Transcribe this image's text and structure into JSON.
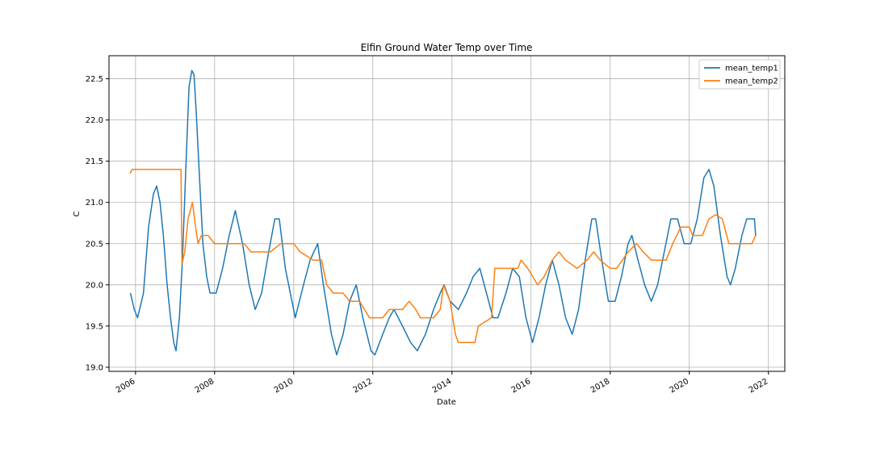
{
  "chart_data": {
    "type": "line",
    "title": "Elfin Ground Water Temp over Time",
    "xlabel": "Date",
    "ylabel": "C",
    "xlim": [
      "2005-05-01",
      "2022-06-01"
    ],
    "ylim": [
      18.95,
      22.78
    ],
    "x_ticks": [
      "2006",
      "2008",
      "2010",
      "2012",
      "2014",
      "2016",
      "2018",
      "2020",
      "2022"
    ],
    "y_ticks": [
      19.0,
      19.5,
      20.0,
      20.5,
      21.0,
      21.5,
      22.0,
      22.5
    ],
    "grid": true,
    "legend_position": "top-right",
    "series": [
      {
        "name": "mean_temp1",
        "color": "#1f77b4",
        "points": [
          [
            "2005-11-15",
            19.9
          ],
          [
            "2005-12-20",
            19.7
          ],
          [
            "2006-01-20",
            19.6
          ],
          [
            "2006-03-15",
            19.9
          ],
          [
            "2006-05-01",
            20.7
          ],
          [
            "2006-06-15",
            21.1
          ],
          [
            "2006-07-15",
            21.2
          ],
          [
            "2006-08-15",
            21.0
          ],
          [
            "2006-09-15",
            20.6
          ],
          [
            "2006-10-20",
            20.0
          ],
          [
            "2006-11-20",
            19.6
          ],
          [
            "2006-12-20",
            19.3
          ],
          [
            "2007-01-10",
            19.2
          ],
          [
            "2007-02-10",
            19.6
          ],
          [
            "2007-03-10",
            20.3
          ],
          [
            "2007-04-10",
            21.4
          ],
          [
            "2007-05-10",
            22.4
          ],
          [
            "2007-06-05",
            22.6
          ],
          [
            "2007-06-25",
            22.55
          ],
          [
            "2007-07-15",
            22.1
          ],
          [
            "2007-08-15",
            21.3
          ],
          [
            "2007-09-15",
            20.5
          ],
          [
            "2007-10-20",
            20.1
          ],
          [
            "2007-11-20",
            19.9
          ],
          [
            "2008-01-15",
            19.9
          ],
          [
            "2008-03-15",
            20.2
          ],
          [
            "2008-05-15",
            20.6
          ],
          [
            "2008-07-10",
            20.9
          ],
          [
            "2008-09-15",
            20.5
          ],
          [
            "2008-11-15",
            20.0
          ],
          [
            "2009-01-10",
            19.7
          ],
          [
            "2009-03-10",
            19.9
          ],
          [
            "2009-05-15",
            20.4
          ],
          [
            "2009-07-10",
            20.8
          ],
          [
            "2009-08-20",
            20.8
          ],
          [
            "2009-10-15",
            20.2
          ],
          [
            "2009-12-15",
            19.8
          ],
          [
            "2010-01-15",
            19.6
          ],
          [
            "2010-04-01",
            20.0
          ],
          [
            "2010-06-01",
            20.3
          ],
          [
            "2010-08-10",
            20.5
          ],
          [
            "2010-10-01",
            20.0
          ],
          [
            "2010-12-15",
            19.4
          ],
          [
            "2011-02-01",
            19.15
          ],
          [
            "2011-04-01",
            19.4
          ],
          [
            "2011-06-01",
            19.8
          ],
          [
            "2011-08-01",
            20.0
          ],
          [
            "2011-10-01",
            19.6
          ],
          [
            "2011-12-15",
            19.2
          ],
          [
            "2012-01-20",
            19.15
          ],
          [
            "2012-04-01",
            19.4
          ],
          [
            "2012-06-01",
            19.6
          ],
          [
            "2012-07-15",
            19.7
          ],
          [
            "2012-10-01",
            19.5
          ],
          [
            "2012-12-15",
            19.3
          ],
          [
            "2013-02-15",
            19.2
          ],
          [
            "2013-05-01",
            19.4
          ],
          [
            "2013-07-15",
            19.7
          ],
          [
            "2013-09-15",
            19.9
          ],
          [
            "2013-10-20",
            20.0
          ],
          [
            "2013-12-15",
            19.8
          ],
          [
            "2014-03-01",
            19.7
          ],
          [
            "2014-05-15",
            19.9
          ],
          [
            "2014-07-15",
            20.1
          ],
          [
            "2014-09-15",
            20.2
          ],
          [
            "2014-11-15",
            19.9
          ],
          [
            "2015-01-15",
            19.6
          ],
          [
            "2015-03-01",
            19.6
          ],
          [
            "2015-05-15",
            19.9
          ],
          [
            "2015-07-15",
            20.2
          ],
          [
            "2015-09-15",
            20.1
          ],
          [
            "2015-11-15",
            19.6
          ],
          [
            "2016-01-15",
            19.3
          ],
          [
            "2016-03-15",
            19.6
          ],
          [
            "2016-05-15",
            20.0
          ],
          [
            "2016-07-15",
            20.3
          ],
          [
            "2016-09-15",
            20.0
          ],
          [
            "2016-11-15",
            19.6
          ],
          [
            "2017-01-15",
            19.4
          ],
          [
            "2017-03-15",
            19.7
          ],
          [
            "2017-05-15",
            20.3
          ],
          [
            "2017-07-15",
            20.8
          ],
          [
            "2017-08-20",
            20.8
          ],
          [
            "2017-10-15",
            20.3
          ],
          [
            "2017-12-15",
            19.8
          ],
          [
            "2018-02-15",
            19.8
          ],
          [
            "2018-04-15",
            20.1
          ],
          [
            "2018-06-15",
            20.5
          ],
          [
            "2018-07-20",
            20.6
          ],
          [
            "2018-09-15",
            20.3
          ],
          [
            "2018-11-15",
            20.0
          ],
          [
            "2019-01-15",
            19.8
          ],
          [
            "2019-03-15",
            20.0
          ],
          [
            "2019-05-15",
            20.4
          ],
          [
            "2019-07-15",
            20.8
          ],
          [
            "2019-09-15",
            20.8
          ],
          [
            "2019-11-15",
            20.5
          ],
          [
            "2020-01-15",
            20.5
          ],
          [
            "2020-03-15",
            20.8
          ],
          [
            "2020-05-15",
            21.3
          ],
          [
            "2020-07-01",
            21.4
          ],
          [
            "2020-08-15",
            21.2
          ],
          [
            "2020-10-15",
            20.6
          ],
          [
            "2020-12-15",
            20.1
          ],
          [
            "2021-01-15",
            20.0
          ],
          [
            "2021-03-01",
            20.2
          ],
          [
            "2021-05-01",
            20.6
          ],
          [
            "2021-06-15",
            20.8
          ],
          [
            "2021-08-25",
            20.8
          ],
          [
            "2021-09-05",
            20.6
          ]
        ]
      },
      {
        "name": "mean_temp2",
        "color": "#ff7f0e",
        "points": [
          [
            "2005-11-10",
            21.35
          ],
          [
            "2005-12-01",
            21.4
          ],
          [
            "2006-06-01",
            21.4
          ],
          [
            "2006-12-01",
            21.4
          ],
          [
            "2007-02-25",
            21.4
          ],
          [
            "2007-03-05",
            20.25
          ],
          [
            "2007-04-01",
            20.4
          ],
          [
            "2007-05-01",
            20.8
          ],
          [
            "2007-06-10",
            21.0
          ],
          [
            "2007-07-10",
            20.7
          ],
          [
            "2007-08-01",
            20.5
          ],
          [
            "2007-09-01",
            20.6
          ],
          [
            "2007-11-01",
            20.6
          ],
          [
            "2008-01-01",
            20.5
          ],
          [
            "2008-06-01",
            20.5
          ],
          [
            "2008-10-01",
            20.5
          ],
          [
            "2008-12-01",
            20.4
          ],
          [
            "2009-06-01",
            20.4
          ],
          [
            "2009-09-01",
            20.5
          ],
          [
            "2010-01-01",
            20.5
          ],
          [
            "2010-03-01",
            20.4
          ],
          [
            "2010-07-01",
            20.3
          ],
          [
            "2010-09-15",
            20.3
          ],
          [
            "2010-11-01",
            20.0
          ],
          [
            "2011-01-01",
            19.9
          ],
          [
            "2011-04-01",
            19.9
          ],
          [
            "2011-06-01",
            19.8
          ],
          [
            "2011-09-01",
            19.8
          ],
          [
            "2011-12-01",
            19.6
          ],
          [
            "2012-04-01",
            19.6
          ],
          [
            "2012-06-01",
            19.7
          ],
          [
            "2012-10-01",
            19.7
          ],
          [
            "2012-12-01",
            19.8
          ],
          [
            "2013-02-01",
            19.7
          ],
          [
            "2013-03-15",
            19.6
          ],
          [
            "2013-07-15",
            19.6
          ],
          [
            "2013-09-15",
            19.7
          ],
          [
            "2013-10-15",
            20.0
          ],
          [
            "2013-12-15",
            19.8
          ],
          [
            "2014-02-01",
            19.4
          ],
          [
            "2014-03-01",
            19.3
          ],
          [
            "2014-08-01",
            19.3
          ],
          [
            "2014-09-01",
            19.5
          ],
          [
            "2015-01-01",
            19.6
          ],
          [
            "2015-02-01",
            20.2
          ],
          [
            "2015-09-01",
            20.2
          ],
          [
            "2015-10-01",
            20.3
          ],
          [
            "2015-12-01",
            20.2
          ],
          [
            "2016-03-01",
            20.0
          ],
          [
            "2016-05-01",
            20.1
          ],
          [
            "2016-07-15",
            20.3
          ],
          [
            "2016-09-15",
            20.4
          ],
          [
            "2016-11-15",
            20.3
          ],
          [
            "2017-03-01",
            20.2
          ],
          [
            "2017-06-01",
            20.3
          ],
          [
            "2017-08-01",
            20.4
          ],
          [
            "2017-10-01",
            20.3
          ],
          [
            "2018-01-01",
            20.2
          ],
          [
            "2018-03-01",
            20.2
          ],
          [
            "2018-06-15",
            20.4
          ],
          [
            "2018-09-01",
            20.5
          ],
          [
            "2018-11-01",
            20.4
          ],
          [
            "2019-01-15",
            20.3
          ],
          [
            "2019-06-01",
            20.3
          ],
          [
            "2019-08-01",
            20.5
          ],
          [
            "2019-10-15",
            20.7
          ],
          [
            "2020-01-01",
            20.7
          ],
          [
            "2020-02-01",
            20.6
          ],
          [
            "2020-05-01",
            20.6
          ],
          [
            "2020-07-01",
            20.8
          ],
          [
            "2020-09-01",
            20.85
          ],
          [
            "2020-11-01",
            20.8
          ],
          [
            "2021-01-01",
            20.5
          ],
          [
            "2021-04-01",
            20.5
          ],
          [
            "2021-06-01",
            20.5
          ],
          [
            "2021-08-01",
            20.5
          ],
          [
            "2021-09-05",
            20.6
          ]
        ]
      }
    ]
  }
}
